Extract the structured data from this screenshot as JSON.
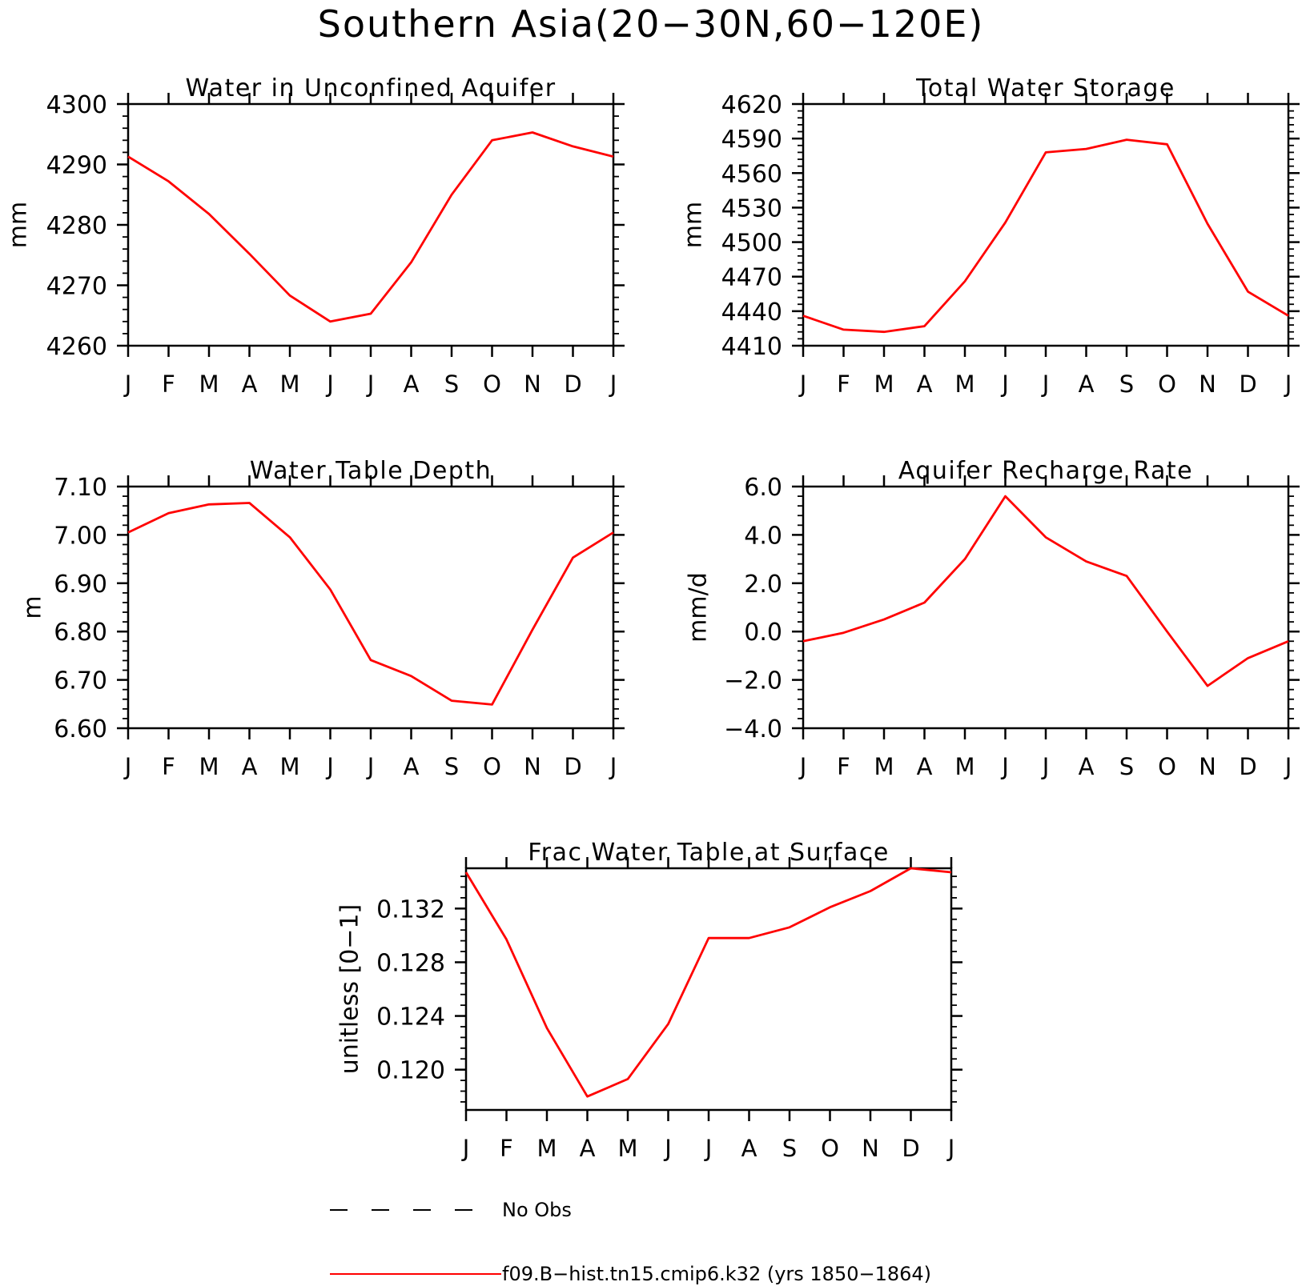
{
  "title": "Southern Asia(20−30N,60−120E)",
  "colors": {
    "line": "#ff0000",
    "axis": "#000000"
  },
  "legend": [
    {
      "label": "No Obs",
      "style": "dashed",
      "color": "#000000"
    },
    {
      "label": "f09.B−hist.tn15.cmip6.k32 (yrs 1850−1864)",
      "style": "solid",
      "color": "#ff0000"
    }
  ],
  "chart_data": [
    {
      "type": "line",
      "title": "Water in Unconfined Aquifer",
      "xlabel": "",
      "ylabel": "mm",
      "categories": [
        "J",
        "F",
        "M",
        "A",
        "M",
        "J",
        "J",
        "A",
        "S",
        "O",
        "N",
        "D",
        "J"
      ],
      "ylim": [
        4260,
        4300
      ],
      "yticks": [
        4260,
        4270,
        4280,
        4290,
        4300
      ],
      "ytick_labels": [
        "4260",
        "4270",
        "4280",
        "4290",
        "4300"
      ],
      "series": [
        {
          "values": [
            4291.3,
            4287.2,
            4281.8,
            4275.2,
            4268.3,
            4264.0,
            4265.3,
            4273.8,
            4285.0,
            4294.0,
            4295.3,
            4293.0,
            4291.3
          ]
        }
      ]
    },
    {
      "type": "line",
      "title": "Total Water Storage",
      "xlabel": "",
      "ylabel": "mm",
      "categories": [
        "J",
        "F",
        "M",
        "A",
        "M",
        "J",
        "J",
        "A",
        "S",
        "O",
        "N",
        "D",
        "J"
      ],
      "ylim": [
        4410,
        4620
      ],
      "yticks": [
        4410,
        4440,
        4470,
        4500,
        4530,
        4560,
        4590,
        4620
      ],
      "ytick_labels": [
        "4410",
        "4440",
        "4470",
        "4500",
        "4530",
        "4560",
        "4590",
        "4620"
      ],
      "series": [
        {
          "values": [
            4436,
            4424,
            4422,
            4427,
            4466,
            4517,
            4578,
            4581,
            4589,
            4585,
            4516,
            4457,
            4436
          ]
        }
      ]
    },
    {
      "type": "line",
      "title": "Water Table Depth",
      "xlabel": "",
      "ylabel": "m",
      "categories": [
        "J",
        "F",
        "M",
        "A",
        "M",
        "J",
        "J",
        "A",
        "S",
        "O",
        "N",
        "D",
        "J"
      ],
      "ylim": [
        6.6,
        7.1
      ],
      "yticks": [
        6.6,
        6.7,
        6.8,
        6.9,
        7.0,
        7.1
      ],
      "ytick_labels": [
        "6.60",
        "6.70",
        "6.80",
        "6.90",
        "7.00",
        "7.10"
      ],
      "series": [
        {
          "values": [
            7.005,
            7.045,
            7.063,
            7.066,
            6.995,
            6.887,
            6.741,
            6.708,
            6.657,
            6.649,
            6.804,
            6.953,
            7.005
          ]
        }
      ]
    },
    {
      "type": "line",
      "title": "Aquifer Recharge Rate",
      "xlabel": "",
      "ylabel": "mm/d",
      "categories": [
        "J",
        "F",
        "M",
        "A",
        "M",
        "J",
        "J",
        "A",
        "S",
        "O",
        "N",
        "D",
        "J"
      ],
      "ylim": [
        -4.0,
        6.0
      ],
      "yticks": [
        -4,
        -2,
        0,
        2,
        4,
        6
      ],
      "ytick_labels": [
        "−4.0",
        "−2.0",
        "0.0",
        "2.0",
        "4.0",
        "6.0"
      ],
      "series": [
        {
          "values": [
            -0.4,
            -0.05,
            0.5,
            1.2,
            3.0,
            5.6,
            3.9,
            2.9,
            2.3,
            0.0,
            -2.25,
            -1.1,
            -0.4
          ]
        }
      ]
    },
    {
      "type": "line",
      "title": "Frac Water Table at Surface",
      "xlabel": "",
      "ylabel": "unitless [0−1]",
      "categories": [
        "J",
        "F",
        "M",
        "A",
        "M",
        "J",
        "J",
        "A",
        "S",
        "O",
        "N",
        "D",
        "J"
      ],
      "ylim": [
        0.117,
        0.135
      ],
      "yticks": [
        0.12,
        0.124,
        0.128,
        0.132
      ],
      "ytick_labels": [
        "0.120",
        "0.124",
        "0.128",
        "0.132"
      ],
      "series": [
        {
          "values": [
            0.1347,
            0.1297,
            0.1231,
            0.118,
            0.1193,
            0.1234,
            0.1298,
            0.1298,
            0.1306,
            0.1321,
            0.1333,
            0.135,
            0.1347
          ]
        }
      ]
    }
  ]
}
